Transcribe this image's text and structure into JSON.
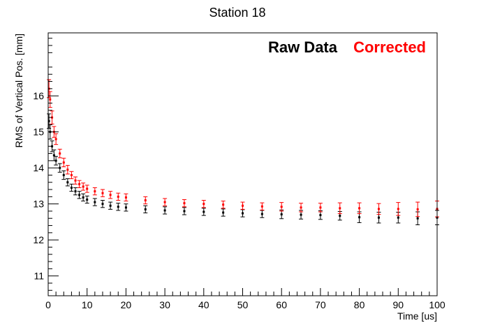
{
  "chart_data": {
    "type": "scatter",
    "title": "Station 18",
    "xlabel": "Time [us]",
    "ylabel": "RMS of Vertical Pos. [mm]",
    "xlim": [
      0,
      100
    ],
    "ylim": [
      10.45,
      17.75
    ],
    "x_ticks": [
      0,
      10,
      20,
      30,
      40,
      50,
      60,
      70,
      80,
      90,
      100
    ],
    "y_ticks": [
      11,
      12,
      13,
      14,
      15,
      16
    ],
    "grid": false,
    "legend": {
      "placement": "top-right",
      "entries": [
        {
          "label": "Raw Data",
          "color": "#000000"
        },
        {
          "label": "Corrected",
          "color": "#ff0000"
        }
      ]
    },
    "series": [
      {
        "name": "Raw Data",
        "color": "#000000",
        "x": [
          0.2,
          0.5,
          1,
          1.5,
          2,
          3,
          4,
          5,
          6,
          7,
          8,
          9,
          10,
          12,
          14,
          16,
          18,
          20,
          25,
          30,
          35,
          40,
          45,
          50,
          55,
          60,
          65,
          70,
          75,
          80,
          85,
          90,
          95,
          100
        ],
        "y": [
          15.3,
          15.0,
          14.6,
          14.35,
          14.2,
          14.0,
          13.8,
          13.6,
          13.45,
          13.35,
          13.25,
          13.18,
          13.12,
          13.05,
          13.0,
          12.95,
          12.92,
          12.9,
          12.85,
          12.82,
          12.8,
          12.78,
          12.76,
          12.74,
          12.72,
          12.71,
          12.7,
          12.69,
          12.67,
          12.63,
          12.62,
          12.62,
          12.6,
          12.62
        ],
        "error": [
          0.2,
          0.2,
          0.15,
          0.15,
          0.12,
          0.12,
          0.12,
          0.1,
          0.1,
          0.1,
          0.1,
          0.1,
          0.1,
          0.1,
          0.1,
          0.1,
          0.1,
          0.1,
          0.1,
          0.1,
          0.1,
          0.1,
          0.1,
          0.1,
          0.1,
          0.12,
          0.12,
          0.12,
          0.12,
          0.15,
          0.15,
          0.15,
          0.18,
          0.2
        ]
      },
      {
        "name": "Corrected",
        "color": "#ff0000",
        "x": [
          0.2,
          0.5,
          1,
          1.5,
          2,
          3,
          4,
          5,
          6,
          7,
          8,
          9,
          10,
          12,
          14,
          16,
          18,
          20,
          25,
          30,
          35,
          40,
          45,
          50,
          55,
          60,
          65,
          70,
          75,
          80,
          85,
          90,
          95,
          100
        ],
        "y": [
          16.2,
          15.9,
          15.4,
          15.0,
          14.8,
          14.4,
          14.15,
          13.95,
          13.8,
          13.65,
          13.55,
          13.48,
          13.42,
          13.35,
          13.3,
          13.25,
          13.2,
          13.18,
          13.1,
          13.05,
          13.02,
          13.0,
          12.98,
          12.95,
          12.93,
          12.92,
          12.9,
          12.9,
          12.88,
          12.88,
          12.86,
          12.86,
          12.85,
          12.86
        ],
        "error": [
          0.25,
          0.22,
          0.18,
          0.15,
          0.15,
          0.12,
          0.12,
          0.12,
          0.1,
          0.1,
          0.1,
          0.1,
          0.1,
          0.1,
          0.1,
          0.1,
          0.1,
          0.1,
          0.1,
          0.1,
          0.1,
          0.1,
          0.1,
          0.1,
          0.1,
          0.12,
          0.12,
          0.12,
          0.15,
          0.15,
          0.15,
          0.18,
          0.2,
          0.22
        ]
      }
    ]
  }
}
